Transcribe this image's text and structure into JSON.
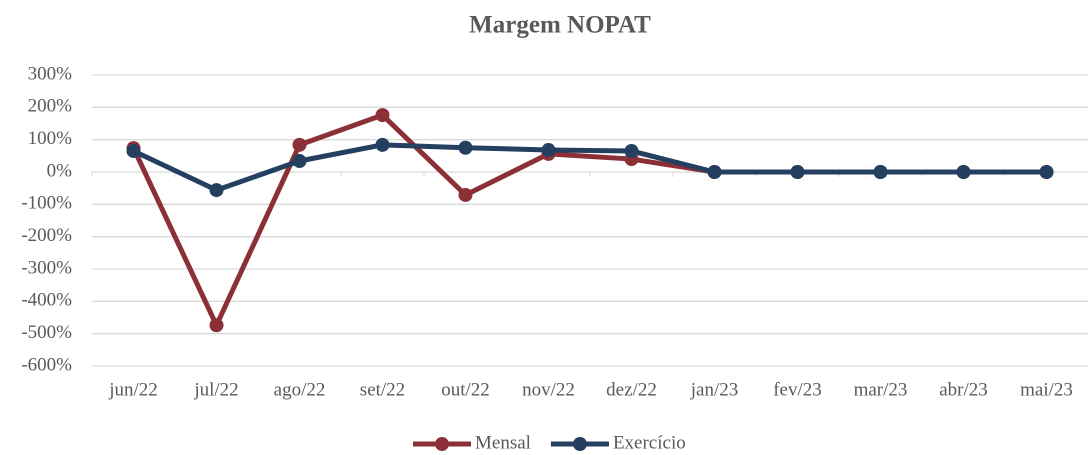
{
  "chart_data": {
    "type": "line",
    "title": "Margem NOPAT",
    "categories": [
      "jun/22",
      "jul/22",
      "ago/22",
      "set/22",
      "out/22",
      "nov/22",
      "dez/22",
      "jan/23",
      "fev/23",
      "mar/23",
      "abr/23",
      "mai/23"
    ],
    "series": [
      {
        "name": "Mensal",
        "color": "#8b3036",
        "values": [
          74,
          -474,
          84,
          176,
          -71,
          56,
          40,
          0,
          0,
          0,
          0,
          0
        ]
      },
      {
        "name": "Exercício",
        "color": "#243f60",
        "values": [
          65,
          -56,
          34,
          84,
          75,
          68,
          65,
          0,
          0,
          0,
          0,
          0
        ]
      }
    ],
    "ylim": [
      -600,
      300
    ],
    "yticks": [
      {
        "value": -600,
        "label": "-600%"
      },
      {
        "value": -500,
        "label": "-500%"
      },
      {
        "value": -400,
        "label": "-400%"
      },
      {
        "value": -300,
        "label": "-300%"
      },
      {
        "value": -200,
        "label": "-200%"
      },
      {
        "value": -100,
        "label": "-100%"
      },
      {
        "value": 0,
        "label": "0%"
      },
      {
        "value": 100,
        "label": "100%"
      },
      {
        "value": 200,
        "label": "200%"
      },
      {
        "value": 300,
        "label": "300%"
      }
    ],
    "grid": true,
    "legend": "bottom"
  }
}
